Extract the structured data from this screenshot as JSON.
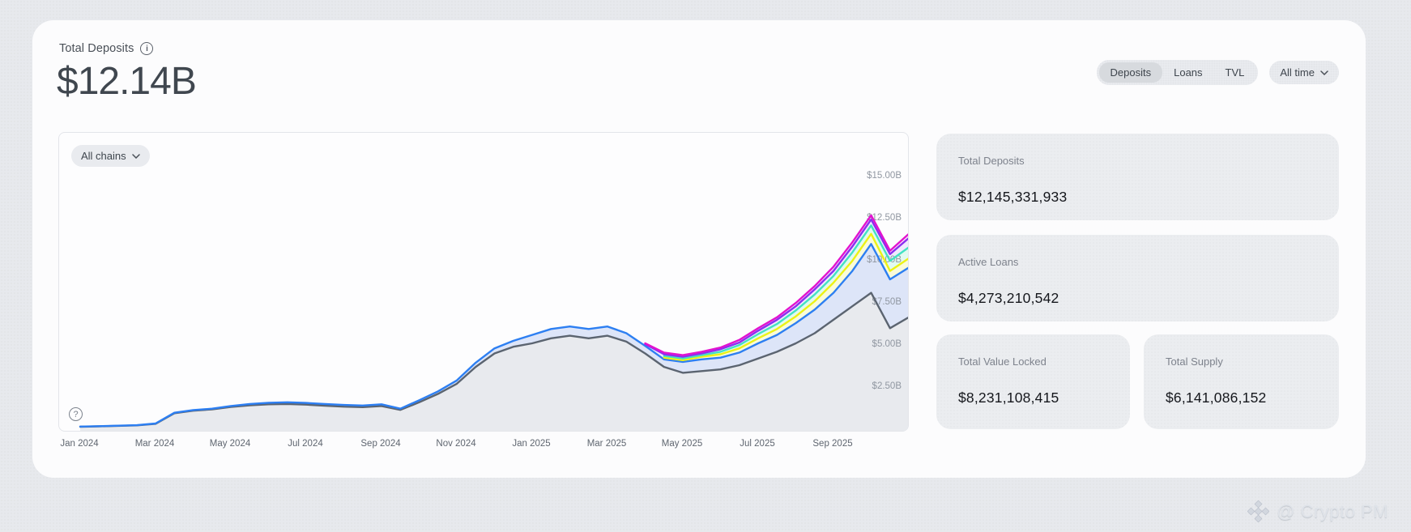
{
  "header": {
    "title": "Total Deposits",
    "big_value": "$12.14B"
  },
  "controls": {
    "tabs": [
      {
        "label": "Deposits",
        "active": true
      },
      {
        "label": "Loans",
        "active": false
      },
      {
        "label": "TVL",
        "active": false
      }
    ],
    "range_selector": "All time"
  },
  "chart": {
    "chain_filter": "All chains",
    "help_glyph": "?",
    "info_glyph": "i",
    "y_ticks": [
      {
        "label": "$15.00B",
        "value": 15
      },
      {
        "label": "$12.50B",
        "value": 12.5
      },
      {
        "label": "$10.00B",
        "value": 10
      },
      {
        "label": "$7.50B",
        "value": 7.5
      },
      {
        "label": "$5.00B",
        "value": 5
      },
      {
        "label": "$2.50B",
        "value": 2.5
      }
    ],
    "x_ticks": [
      {
        "label": "Jan 2024",
        "month": 0
      },
      {
        "label": "Mar 2024",
        "month": 2
      },
      {
        "label": "May 2024",
        "month": 4
      },
      {
        "label": "Jul 2024",
        "month": 6
      },
      {
        "label": "Sep 2024",
        "month": 8
      },
      {
        "label": "Nov 2024",
        "month": 10
      },
      {
        "label": "Jan 2025",
        "month": 12
      },
      {
        "label": "Mar 2025",
        "month": 14
      },
      {
        "label": "May 2025",
        "month": 16
      },
      {
        "label": "Jul 2025",
        "month": 18
      },
      {
        "label": "Sep 2025",
        "month": 20
      }
    ]
  },
  "chart_data": {
    "type": "line",
    "title": "Total Deposits over time, all chains (stacked cumulative lines, $B)",
    "x_unit": "months since Jan 2024",
    "x_step": 0.5,
    "xlim": [
      0,
      22
    ],
    "ylim": [
      0,
      15.5
    ],
    "grid": false,
    "legend": "none",
    "series": [
      {
        "name": "magenta",
        "color": "#e212cf",
        "fill": "#fbe7fa",
        "values": [
          null,
          null,
          null,
          null,
          null,
          null,
          null,
          null,
          null,
          null,
          null,
          null,
          null,
          null,
          null,
          null,
          null,
          null,
          null,
          null,
          null,
          null,
          null,
          null,
          null,
          null,
          null,
          null,
          null,
          null,
          5.0,
          4.45,
          4.3,
          4.5,
          4.75,
          5.2,
          5.9,
          6.55,
          7.4,
          8.4,
          9.55,
          11.0,
          12.6,
          10.5,
          11.5
        ]
      },
      {
        "name": "purple",
        "color": "#8b2ff0",
        "fill": "#f1ebfd",
        "values": [
          null,
          null,
          null,
          null,
          null,
          null,
          null,
          null,
          null,
          null,
          null,
          null,
          null,
          null,
          null,
          null,
          null,
          null,
          null,
          null,
          null,
          null,
          null,
          null,
          null,
          null,
          null,
          null,
          null,
          null,
          4.95,
          4.35,
          4.2,
          4.4,
          4.65,
          5.05,
          5.75,
          6.4,
          7.2,
          8.2,
          9.3,
          10.75,
          12.35,
          10.3,
          11.25
        ]
      },
      {
        "name": "teal",
        "color": "#43e2c2",
        "fill": "#e2faf1",
        "values": [
          null,
          null,
          null,
          null,
          null,
          null,
          null,
          null,
          null,
          null,
          null,
          null,
          null,
          null,
          null,
          null,
          null,
          null,
          null,
          null,
          null,
          null,
          null,
          null,
          null,
          null,
          null,
          null,
          null,
          null,
          null,
          4.25,
          4.1,
          4.3,
          4.5,
          4.9,
          5.55,
          6.15,
          6.95,
          7.9,
          9.0,
          10.4,
          12.0,
          9.9,
          10.7
        ]
      },
      {
        "name": "yellow",
        "color": "#ecf215",
        "fill": "#fafbd9",
        "values": [
          null,
          null,
          null,
          null,
          null,
          null,
          null,
          null,
          null,
          null,
          null,
          null,
          null,
          null,
          null,
          null,
          null,
          null,
          null,
          null,
          null,
          null,
          null,
          null,
          null,
          null,
          null,
          null,
          null,
          null,
          null,
          4.15,
          4.0,
          4.2,
          4.35,
          4.7,
          5.3,
          5.85,
          6.6,
          7.5,
          8.6,
          9.9,
          11.5,
          9.3,
          10.05
        ]
      },
      {
        "name": "blue",
        "color": "#2d7ff2",
        "fill": "#dde5f8",
        "values": [
          0.06,
          0.08,
          0.11,
          0.14,
          0.24,
          0.88,
          1.04,
          1.12,
          1.28,
          1.4,
          1.47,
          1.5,
          1.46,
          1.4,
          1.34,
          1.31,
          1.38,
          1.12,
          1.62,
          2.15,
          2.8,
          3.85,
          4.7,
          5.15,
          5.5,
          5.85,
          6.0,
          5.85,
          6.0,
          5.6,
          4.85,
          4.05,
          3.9,
          4.05,
          4.15,
          4.45,
          5.0,
          5.5,
          6.2,
          7.0,
          8.0,
          9.3,
          10.9,
          8.8,
          9.5
        ]
      },
      {
        "name": "gray",
        "color": "#5b6470",
        "fill": "#e8eaee",
        "values": [
          0.05,
          0.07,
          0.1,
          0.13,
          0.22,
          0.85,
          1.0,
          1.08,
          1.22,
          1.32,
          1.38,
          1.4,
          1.36,
          1.3,
          1.24,
          1.21,
          1.28,
          1.05,
          1.5,
          2.0,
          2.6,
          3.6,
          4.4,
          4.8,
          5.0,
          5.3,
          5.45,
          5.3,
          5.45,
          5.1,
          4.4,
          3.6,
          3.25,
          3.35,
          3.45,
          3.7,
          4.1,
          4.5,
          5.0,
          5.6,
          6.4,
          7.2,
          8.0,
          5.9,
          6.55
        ]
      }
    ]
  },
  "stats_cards": [
    {
      "label": "Total Deposits",
      "value": "$12,145,331,933"
    },
    {
      "label": "Active Loans",
      "value": "$4,273,210,542"
    },
    {
      "label": "Total Value Locked",
      "value": "$8,231,108,415"
    },
    {
      "label": "Total Supply",
      "value": "$6,141,086,152"
    }
  ],
  "watermark": {
    "text": "@ Crypto PM",
    "icon": "diamond-icon"
  },
  "colors": {
    "page_bg": "#e7e9ed",
    "panel_bg": "#fcfcfd",
    "card_bg": "#ebedf0",
    "segmented_bg": "#e9ebef",
    "active_tab_bg": "#d7dade",
    "chart_border": "#e3e5ea",
    "y_tick_text": "#9097a1",
    "x_tick_text": "#5f6670"
  }
}
